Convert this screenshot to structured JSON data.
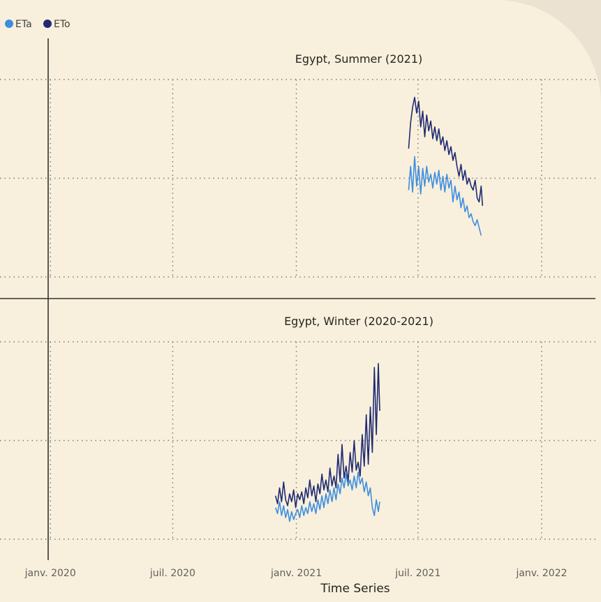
{
  "colors": {
    "ETa": "#3d8ee0",
    "ETo": "#1f2a72"
  },
  "legend": [
    {
      "label": "ETa",
      "color": "#3d8ee0"
    },
    {
      "label": "ETo",
      "color": "#1f2a72"
    }
  ],
  "chart_data": {
    "type": "line",
    "layout": "small-multiples",
    "xlabel": "Time Series",
    "x_ticks": [
      "janv. 2020",
      "juil. 2020",
      "janv. 2021",
      "juil. 2021",
      "janv. 2022"
    ],
    "x_tick_dates": [
      "2020-01-01",
      "2020-07-01",
      "2021-01-01",
      "2021-07-01",
      "2022-01-01"
    ],
    "xlim": [
      "2019-10-18",
      "2022-03-22"
    ],
    "grid": true,
    "legend_position": "top-left",
    "panels": [
      {
        "title": "Egypt, Summer (2021)",
        "ylim": [
          0,
          10
        ],
        "series": [
          {
            "name": "ETo",
            "points": [
              [
                "2021-06-17",
                6.5
              ],
              [
                "2021-06-20",
                7.8
              ],
              [
                "2021-06-23",
                8.6
              ],
              [
                "2021-06-26",
                9.1
              ],
              [
                "2021-06-29",
                8.3
              ],
              [
                "2021-07-02",
                8.9
              ],
              [
                "2021-07-05",
                7.6
              ],
              [
                "2021-07-08",
                8.4
              ],
              [
                "2021-07-11",
                7.1
              ],
              [
                "2021-07-14",
                8.2
              ],
              [
                "2021-07-17",
                7.4
              ],
              [
                "2021-07-20",
                7.9
              ],
              [
                "2021-07-23",
                7.0
              ],
              [
                "2021-07-26",
                7.6
              ],
              [
                "2021-07-29",
                6.9
              ],
              [
                "2021-08-01",
                7.5
              ],
              [
                "2021-08-04",
                6.7
              ],
              [
                "2021-08-07",
                7.1
              ],
              [
                "2021-08-10",
                6.4
              ],
              [
                "2021-08-13",
                6.9
              ],
              [
                "2021-08-16",
                6.2
              ],
              [
                "2021-08-19",
                6.6
              ],
              [
                "2021-08-22",
                5.9
              ],
              [
                "2021-08-25",
                6.3
              ],
              [
                "2021-08-28",
                5.6
              ],
              [
                "2021-08-31",
                5.1
              ],
              [
                "2021-09-03",
                5.7
              ],
              [
                "2021-09-06",
                4.9
              ],
              [
                "2021-09-09",
                5.4
              ],
              [
                "2021-09-12",
                4.7
              ],
              [
                "2021-09-15",
                5.0
              ],
              [
                "2021-09-18",
                4.6
              ],
              [
                "2021-09-21",
                4.4
              ],
              [
                "2021-09-24",
                4.9
              ],
              [
                "2021-09-27",
                4.0
              ],
              [
                "2021-09-30",
                3.8
              ],
              [
                "2021-10-03",
                4.6
              ],
              [
                "2021-10-05",
                3.6
              ]
            ]
          },
          {
            "name": "ETa",
            "points": [
              [
                "2021-06-17",
                4.4
              ],
              [
                "2021-06-20",
                5.6
              ],
              [
                "2021-06-23",
                4.3
              ],
              [
                "2021-06-26",
                6.1
              ],
              [
                "2021-06-29",
                4.6
              ],
              [
                "2021-07-02",
                5.6
              ],
              [
                "2021-07-05",
                4.2
              ],
              [
                "2021-07-08",
                5.5
              ],
              [
                "2021-07-11",
                4.6
              ],
              [
                "2021-07-14",
                5.6
              ],
              [
                "2021-07-17",
                4.8
              ],
              [
                "2021-07-20",
                5.2
              ],
              [
                "2021-07-23",
                4.5
              ],
              [
                "2021-07-26",
                5.3
              ],
              [
                "2021-07-29",
                4.7
              ],
              [
                "2021-08-01",
                5.4
              ],
              [
                "2021-08-04",
                4.4
              ],
              [
                "2021-08-07",
                5.1
              ],
              [
                "2021-08-10",
                4.3
              ],
              [
                "2021-08-13",
                5.2
              ],
              [
                "2021-08-16",
                4.5
              ],
              [
                "2021-08-19",
                4.9
              ],
              [
                "2021-08-22",
                3.8
              ],
              [
                "2021-08-25",
                4.6
              ],
              [
                "2021-08-28",
                3.9
              ],
              [
                "2021-08-31",
                4.3
              ],
              [
                "2021-09-03",
                3.5
              ],
              [
                "2021-09-06",
                4.0
              ],
              [
                "2021-09-09",
                3.3
              ],
              [
                "2021-09-12",
                3.6
              ],
              [
                "2021-09-15",
                3.0
              ],
              [
                "2021-09-18",
                3.2
              ],
              [
                "2021-09-21",
                2.8
              ],
              [
                "2021-09-24",
                2.6
              ],
              [
                "2021-09-27",
                2.9
              ],
              [
                "2021-09-30",
                2.5
              ],
              [
                "2021-10-03",
                2.1
              ]
            ]
          }
        ]
      },
      {
        "title": "Egypt, Winter (2020-2021)",
        "ylim": [
          0,
          10
        ],
        "series": [
          {
            "name": "ETo",
            "points": [
              [
                "2020-12-01",
                2.2
              ],
              [
                "2020-12-04",
                1.8
              ],
              [
                "2020-12-07",
                2.6
              ],
              [
                "2020-12-10",
                1.9
              ],
              [
                "2020-12-13",
                2.9
              ],
              [
                "2020-12-16",
                2.0
              ],
              [
                "2020-12-19",
                1.7
              ],
              [
                "2020-12-22",
                2.3
              ],
              [
                "2020-12-25",
                1.9
              ],
              [
                "2020-12-28",
                2.5
              ],
              [
                "2020-12-31",
                1.6
              ],
              [
                "2021-01-03",
                2.3
              ],
              [
                "2021-01-06",
                2.0
              ],
              [
                "2021-01-09",
                2.4
              ],
              [
                "2021-01-12",
                1.8
              ],
              [
                "2021-01-15",
                2.6
              ],
              [
                "2021-01-18",
                2.1
              ],
              [
                "2021-01-21",
                3.0
              ],
              [
                "2021-01-24",
                2.2
              ],
              [
                "2021-01-27",
                2.7
              ],
              [
                "2021-01-30",
                1.9
              ],
              [
                "2021-02-02",
                2.8
              ],
              [
                "2021-02-05",
                2.3
              ],
              [
                "2021-02-08",
                3.3
              ],
              [
                "2021-02-11",
                2.5
              ],
              [
                "2021-02-14",
                3.0
              ],
              [
                "2021-02-17",
                2.4
              ],
              [
                "2021-02-20",
                3.6
              ],
              [
                "2021-02-23",
                2.7
              ],
              [
                "2021-02-26",
                3.2
              ],
              [
                "2021-03-01",
                2.6
              ],
              [
                "2021-03-04",
                4.3
              ],
              [
                "2021-03-07",
                2.9
              ],
              [
                "2021-03-10",
                4.8
              ],
              [
                "2021-03-13",
                3.1
              ],
              [
                "2021-03-16",
                3.7
              ],
              [
                "2021-03-19",
                2.9
              ],
              [
                "2021-03-22",
                4.4
              ],
              [
                "2021-03-25",
                3.4
              ],
              [
                "2021-03-28",
                5.0
              ],
              [
                "2021-03-31",
                3.5
              ],
              [
                "2021-04-03",
                3.9
              ],
              [
                "2021-04-06",
                3.2
              ],
              [
                "2021-04-09",
                5.3
              ],
              [
                "2021-04-12",
                3.7
              ],
              [
                "2021-04-15",
                6.3
              ],
              [
                "2021-04-18",
                3.8
              ],
              [
                "2021-04-21",
                6.7
              ],
              [
                "2021-04-24",
                4.4
              ],
              [
                "2021-04-27",
                8.7
              ],
              [
                "2021-04-30",
                5.3
              ],
              [
                "2021-05-03",
                8.9
              ],
              [
                "2021-05-05",
                6.5
              ]
            ]
          },
          {
            "name": "ETa",
            "points": [
              [
                "2020-12-01",
                1.6
              ],
              [
                "2020-12-04",
                1.3
              ],
              [
                "2020-12-07",
                1.9
              ],
              [
                "2020-12-10",
                1.2
              ],
              [
                "2020-12-13",
                1.7
              ],
              [
                "2020-12-16",
                1.1
              ],
              [
                "2020-12-19",
                1.5
              ],
              [
                "2020-12-22",
                0.9
              ],
              [
                "2020-12-25",
                1.4
              ],
              [
                "2020-12-28",
                1.0
              ],
              [
                "2020-12-31",
                1.3
              ],
              [
                "2021-01-03",
                1.5
              ],
              [
                "2021-01-06",
                1.1
              ],
              [
                "2021-01-09",
                1.7
              ],
              [
                "2021-01-12",
                1.2
              ],
              [
                "2021-01-15",
                1.6
              ],
              [
                "2021-01-18",
                1.3
              ],
              [
                "2021-01-21",
                1.9
              ],
              [
                "2021-01-24",
                1.4
              ],
              [
                "2021-01-27",
                1.8
              ],
              [
                "2021-01-30",
                1.3
              ],
              [
                "2021-02-02",
                2.0
              ],
              [
                "2021-02-05",
                1.5
              ],
              [
                "2021-02-08",
                2.2
              ],
              [
                "2021-02-11",
                1.6
              ],
              [
                "2021-02-14",
                2.3
              ],
              [
                "2021-02-17",
                1.8
              ],
              [
                "2021-02-20",
                2.5
              ],
              [
                "2021-02-23",
                1.9
              ],
              [
                "2021-02-26",
                2.6
              ],
              [
                "2021-03-01",
                2.0
              ],
              [
                "2021-03-04",
                2.8
              ],
              [
                "2021-03-07",
                2.3
              ],
              [
                "2021-03-10",
                3.1
              ],
              [
                "2021-03-13",
                2.6
              ],
              [
                "2021-03-16",
                3.3
              ],
              [
                "2021-03-19",
                2.7
              ],
              [
                "2021-03-22",
                3.0
              ],
              [
                "2021-03-25",
                2.5
              ],
              [
                "2021-03-28",
                3.2
              ],
              [
                "2021-03-31",
                2.6
              ],
              [
                "2021-04-03",
                3.4
              ],
              [
                "2021-04-06",
                2.8
              ],
              [
                "2021-04-09",
                3.1
              ],
              [
                "2021-04-12",
                2.4
              ],
              [
                "2021-04-15",
                2.9
              ],
              [
                "2021-04-18",
                2.2
              ],
              [
                "2021-04-21",
                2.6
              ],
              [
                "2021-04-24",
                1.6
              ],
              [
                "2021-04-27",
                1.2
              ],
              [
                "2021-04-30",
                2.0
              ],
              [
                "2021-05-03",
                1.4
              ],
              [
                "2021-05-05",
                1.9
              ]
            ]
          }
        ]
      }
    ]
  }
}
